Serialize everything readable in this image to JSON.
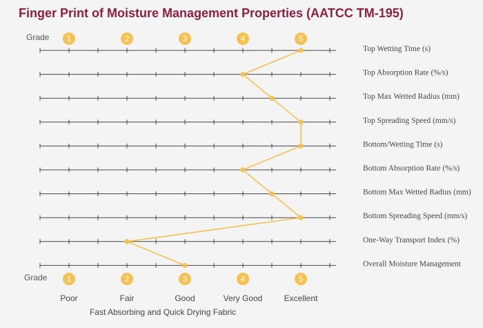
{
  "title": "Finger Print of Moisture Management Properties (AATCC TM-195)",
  "grade_label": "Grade",
  "footnote": "Fast Absorbing and Quick Drying Fabric",
  "colors": {
    "accent": "#f6c150",
    "title": "#8e1f3f",
    "axis": "#444444",
    "background": "#f4f4f4"
  },
  "chart_data": {
    "type": "line",
    "title": "Finger Print of Moisture Management Properties (AATCC TM-195)",
    "x_axis": {
      "label": "Grade",
      "ticks": [
        "1",
        "2",
        "3",
        "4",
        "5"
      ],
      "categories": [
        "Poor",
        "Fair",
        "Good",
        "Very Good",
        "Excellent"
      ],
      "range": [
        0.5,
        5.5
      ],
      "minor_step": 0.5
    },
    "rows": [
      {
        "name": "Top Wetting Time (s)",
        "grade": 5
      },
      {
        "name": "Top Absorption Rate (%/s)",
        "grade": 4
      },
      {
        "name": "Top Max Wetted Radius (mm)",
        "grade": 4.5
      },
      {
        "name": "Top Spreading Speed (mm/s)",
        "grade": 5
      },
      {
        "name": "Bottom/Wetting Time (s)",
        "grade": 5
      },
      {
        "name": "Bottom Absorption Rate (%/s)",
        "grade": 4
      },
      {
        "name": "Bottom Max Wetted Radius (mm)",
        "grade": 4.5
      },
      {
        "name": "Bottom Spreading Speed (mm/s)",
        "grade": 5
      },
      {
        "name": "One-Way Transport Index (%)",
        "grade": 2
      },
      {
        "name": "Overall Moisture Management",
        "grade": 3
      }
    ],
    "grid": false,
    "legend": "none"
  }
}
